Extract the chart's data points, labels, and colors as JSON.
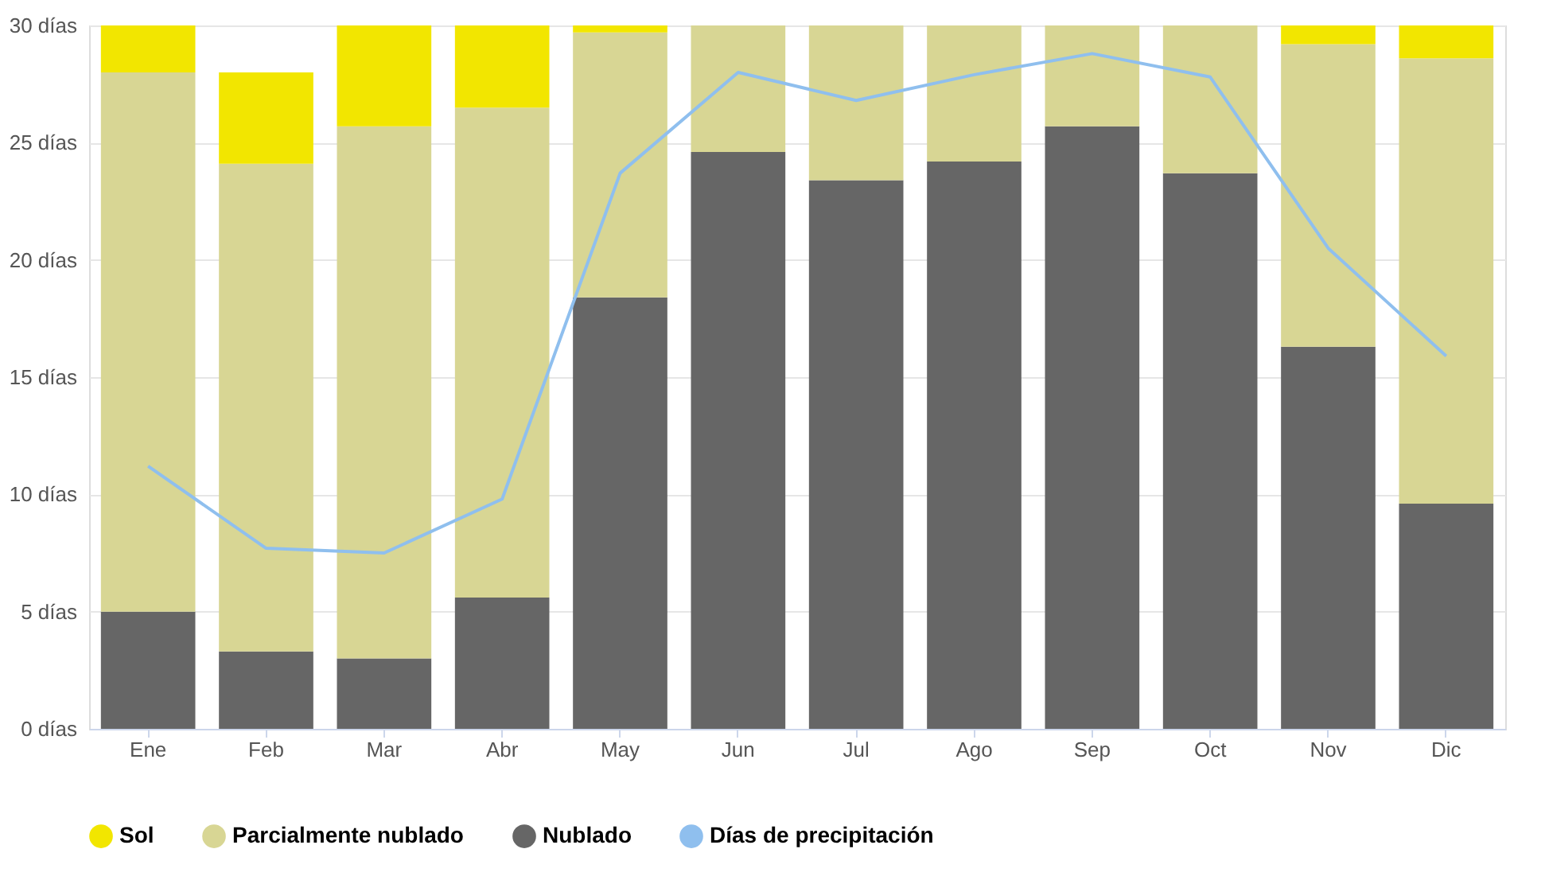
{
  "chart_data": {
    "type": "bar",
    "stacked": true,
    "categories": [
      "Ene",
      "Feb",
      "Mar",
      "Abr",
      "May",
      "Jun",
      "Jul",
      "Ago",
      "Sep",
      "Oct",
      "Nov",
      "Dic"
    ],
    "series": [
      {
        "name": "Nublado",
        "color": "#666666",
        "values": [
          5.0,
          3.3,
          3.0,
          5.6,
          18.4,
          24.6,
          23.4,
          24.2,
          25.7,
          23.7,
          16.3,
          9.6
        ]
      },
      {
        "name": "Parcialmente nublado",
        "color": "#d8d694",
        "values": [
          23.0,
          20.8,
          22.7,
          20.9,
          11.3,
          5.4,
          6.6,
          5.8,
          4.3,
          6.3,
          12.9,
          19.0
        ]
      },
      {
        "name": "Sol",
        "color": "#f2e600",
        "values": [
          2.0,
          3.9,
          4.3,
          3.5,
          0.3,
          0,
          0,
          0,
          0,
          0,
          0.8,
          1.4
        ]
      },
      {
        "name": "Días de precipitación",
        "type": "line",
        "color": "#8fbfee",
        "values": [
          11.2,
          7.7,
          7.5,
          9.8,
          23.7,
          28.0,
          26.8,
          27.9,
          28.8,
          27.8,
          20.5,
          15.9
        ]
      }
    ],
    "ylim": [
      0,
      30
    ],
    "yticks": [
      {
        "value": 0,
        "label": "0 días"
      },
      {
        "value": 5,
        "label": "5 días"
      },
      {
        "value": 10,
        "label": "10 días"
      },
      {
        "value": 15,
        "label": "15 días"
      },
      {
        "value": 20,
        "label": "20 días"
      },
      {
        "value": 25,
        "label": "25 días"
      },
      {
        "value": 30,
        "label": "30 días"
      }
    ],
    "grid": "y",
    "legend": "bottom"
  }
}
